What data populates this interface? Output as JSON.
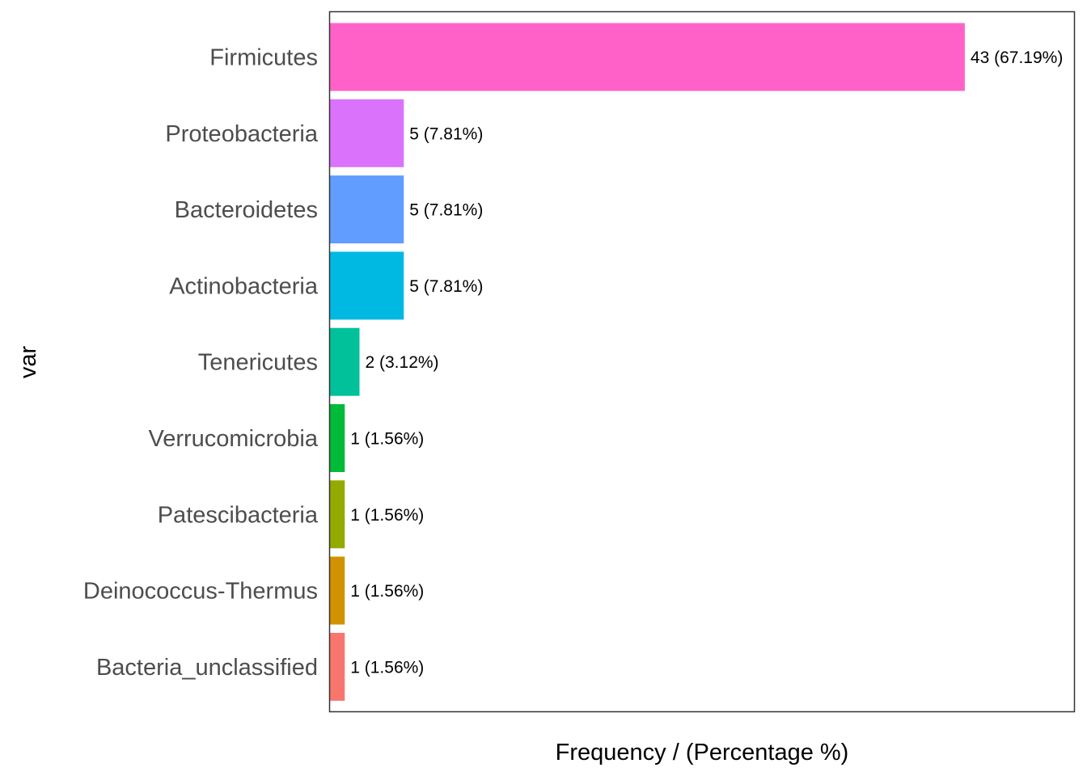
{
  "chart_data": {
    "type": "bar",
    "orientation": "horizontal",
    "categories": [
      "Firmicutes",
      "Proteobacteria",
      "Bacteroidetes",
      "Actinobacteria",
      "Tenericutes",
      "Verrucomicrobia",
      "Patescibacteria",
      "Deinococcus-Thermus",
      "Bacteria_unclassified"
    ],
    "values": [
      43,
      5,
      5,
      5,
      2,
      1,
      1,
      1,
      1
    ],
    "data_labels": [
      "43 (67.19%)",
      "5 (7.81%)",
      "5 (7.81%)",
      "5 (7.81%)",
      "2 (3.12%)",
      "1 (1.56%)",
      "1 (1.56%)",
      "1 (1.56%)",
      "1 (1.56%)"
    ],
    "colors": [
      "#FF61C9",
      "#DB72FB",
      "#619CFF",
      "#00B9E3",
      "#00C19A",
      "#00BA38",
      "#93AA00",
      "#D39200",
      "#F8766D"
    ],
    "xlabel": "Frequency / (Percentage %)",
    "ylabel": "var",
    "xlim": [
      0,
      50.4
    ],
    "grid": false,
    "legend": "none"
  }
}
